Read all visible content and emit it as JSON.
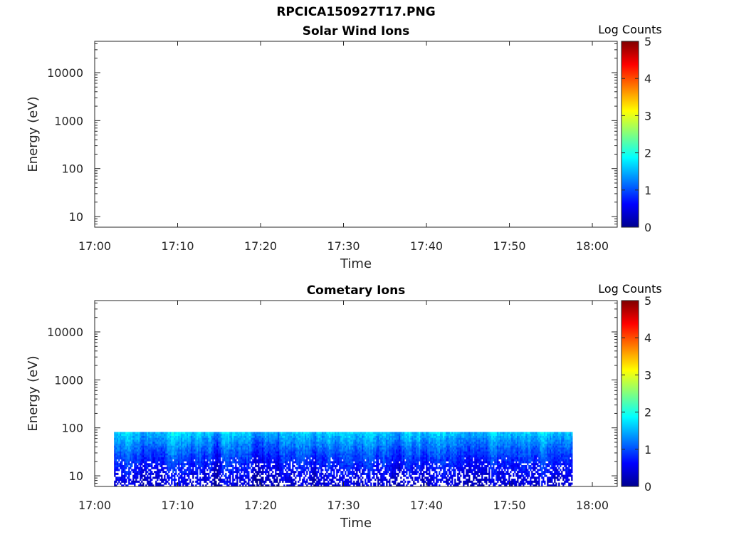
{
  "title": "RPCICA150927T17.PNG",
  "colormap": [
    "#00008f",
    "#0000ff",
    "#0080ff",
    "#00ffff",
    "#80ff80",
    "#ffff00",
    "#ff8000",
    "#ff0000",
    "#800000"
  ],
  "chart_data": [
    {
      "type": "heatmap",
      "title": "Solar Wind Ions",
      "xlabel": "Time",
      "ylabel": "Energy (eV)",
      "x_ticks": [
        "17:00",
        "17:10",
        "17:20",
        "17:30",
        "17:40",
        "17:50",
        "18:00"
      ],
      "x_range": [
        "17:00",
        "18:03"
      ],
      "y_scale": "log",
      "y_ticks": [
        10,
        100,
        1000,
        10000
      ],
      "y_tick_labels": [
        "10",
        "100",
        "1000",
        "10000"
      ],
      "y_range": [
        6,
        45000
      ],
      "colorbar": {
        "title": "Log Counts",
        "range": [
          0,
          5
        ],
        "ticks": [
          "0",
          "1",
          "2",
          "3",
          "4",
          "5"
        ]
      },
      "data": []
    },
    {
      "type": "heatmap",
      "title": "Cometary Ions",
      "xlabel": "Time",
      "ylabel": "Energy (eV)",
      "x_ticks": [
        "17:00",
        "17:10",
        "17:20",
        "17:30",
        "17:40",
        "17:50",
        "18:00"
      ],
      "x_range": [
        "17:00",
        "18:03"
      ],
      "y_scale": "log",
      "y_ticks": [
        10,
        100,
        1000,
        10000
      ],
      "y_tick_labels": [
        "10",
        "100",
        "1000",
        "10000"
      ],
      "y_range": [
        6,
        45000
      ],
      "colorbar": {
        "title": "Log Counts",
        "range": [
          0,
          5
        ],
        "ticks": [
          "0",
          "1",
          "2",
          "3",
          "4",
          "5"
        ]
      },
      "data_extent": {
        "time_start": "17:02:20",
        "time_end": "17:57:40",
        "energy_min": 6,
        "energy_max": 82
      },
      "energy_profile": [
        {
          "energy": 80,
          "log_counts": 1.5
        },
        {
          "energy": 50,
          "log_counts": 1.2
        },
        {
          "energy": 30,
          "log_counts": 0.9
        },
        {
          "energy": 20,
          "log_counts": 0.7
        },
        {
          "energy": 12,
          "log_counts": 0.5
        },
        {
          "energy": 8,
          "log_counts": 0.3
        }
      ]
    }
  ]
}
